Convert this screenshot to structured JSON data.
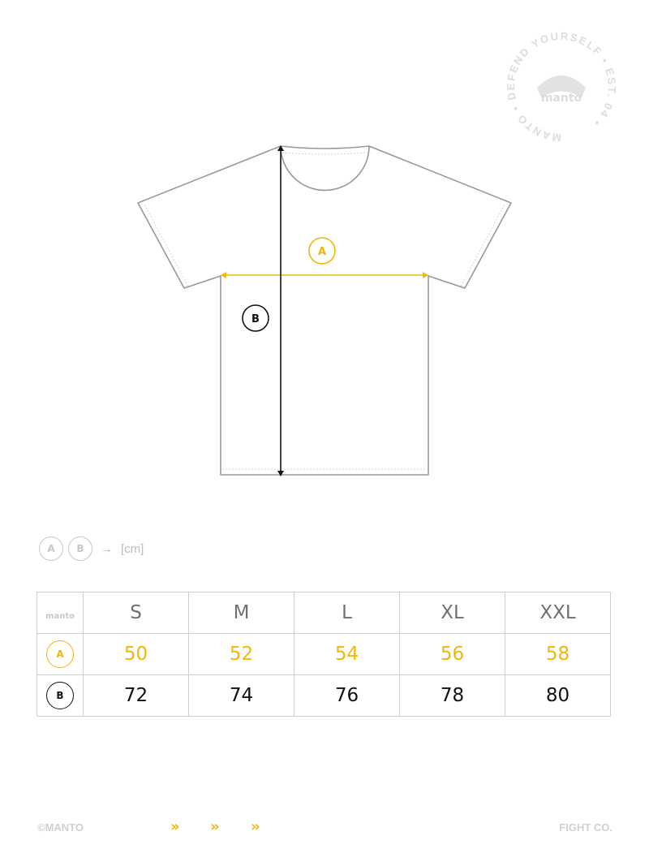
{
  "colors": {
    "accent": "#f2b705",
    "outline": "#999999",
    "dark": "#111111",
    "muted": "#c8c8c8"
  },
  "seal": {
    "ring_text": "MANTO • DEFEND YOURSELF • EST. 04 •",
    "logo": "manto"
  },
  "diagram": {
    "label_a": "A",
    "label_b": "B"
  },
  "legend": {
    "a": "A",
    "b": "B",
    "arrow": "→",
    "unit": "[cm]"
  },
  "table": {
    "logo": "manto",
    "sizes": [
      "S",
      "M",
      "L",
      "XL",
      "XXL"
    ],
    "rows": [
      {
        "label": "A",
        "values": [
          "50",
          "52",
          "54",
          "56",
          "58"
        ]
      },
      {
        "label": "B",
        "values": [
          "72",
          "74",
          "76",
          "78",
          "80"
        ]
      }
    ]
  },
  "footer": {
    "left": "©MANTO",
    "right": "FIGHT CO.",
    "chevron": "»"
  }
}
